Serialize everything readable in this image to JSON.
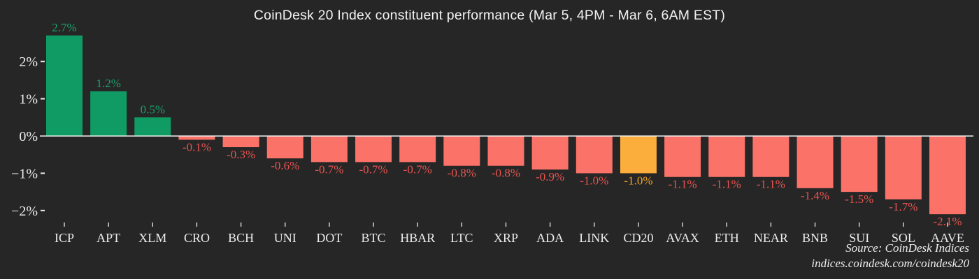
{
  "title": "CoinDesk 20 Index constituent performance (Mar 5, 4PM - Mar 6, 6AM EST)",
  "source": {
    "line1": "Source: CoinDesk Indices",
    "line2": "indices.coindesk.com/coindesk20"
  },
  "colors": {
    "background": "#262626",
    "positive_bar": "#0f9b63",
    "positive_label": "#19a26d",
    "negative_bar": "#fa7268",
    "negative_label": "#e85450",
    "highlight_bar": "#fcae3c",
    "highlight_label": "#f4a427",
    "axis_text": "#ececec",
    "axis_line": "#f0f0f0"
  },
  "chart_data": {
    "type": "bar",
    "title": "CoinDesk 20 Index constituent performance (Mar 5, 4PM - Mar 6, 6AM EST)",
    "xlabel": "",
    "ylabel": "",
    "categories": [
      "ICP",
      "APT",
      "XLM",
      "CRO",
      "BCH",
      "UNI",
      "DOT",
      "BTC",
      "HBAR",
      "LTC",
      "XRP",
      "ADA",
      "LINK",
      "CD20",
      "AVAX",
      "ETH",
      "NEAR",
      "BNB",
      "SUI",
      "SOL",
      "AAVE"
    ],
    "values": [
      2.7,
      1.2,
      0.5,
      -0.1,
      -0.3,
      -0.6,
      -0.7,
      -0.7,
      -0.7,
      -0.8,
      -0.8,
      -0.9,
      -1.0,
      -1.0,
      -1.1,
      -1.1,
      -1.1,
      -1.4,
      -1.5,
      -1.7,
      -2.1
    ],
    "bar_labels": [
      "2.7%",
      "1.2%",
      "0.5%",
      "-0.1%",
      "-0.3%",
      "-0.6%",
      "-0.7%",
      "-0.7%",
      "-0.7%",
      "-0.8%",
      "-0.8%",
      "-0.9%",
      "-1.0%",
      "-1.0%",
      "-1.1%",
      "-1.1%",
      "-1.1%",
      "-1.4%",
      "-1.5%",
      "-1.7%",
      "-2.1%"
    ],
    "highlight_category": "CD20",
    "y_ticks": [
      {
        "value": 2,
        "label": "2%"
      },
      {
        "value": 1,
        "label": "1%"
      },
      {
        "value": 0,
        "label": "0%"
      },
      {
        "value": -1,
        "label": "−1%"
      },
      {
        "value": -2,
        "label": "−2%"
      }
    ],
    "ylim": [
      -2.5,
      3.6
    ],
    "grid": false,
    "legend": false,
    "unit": "%"
  }
}
